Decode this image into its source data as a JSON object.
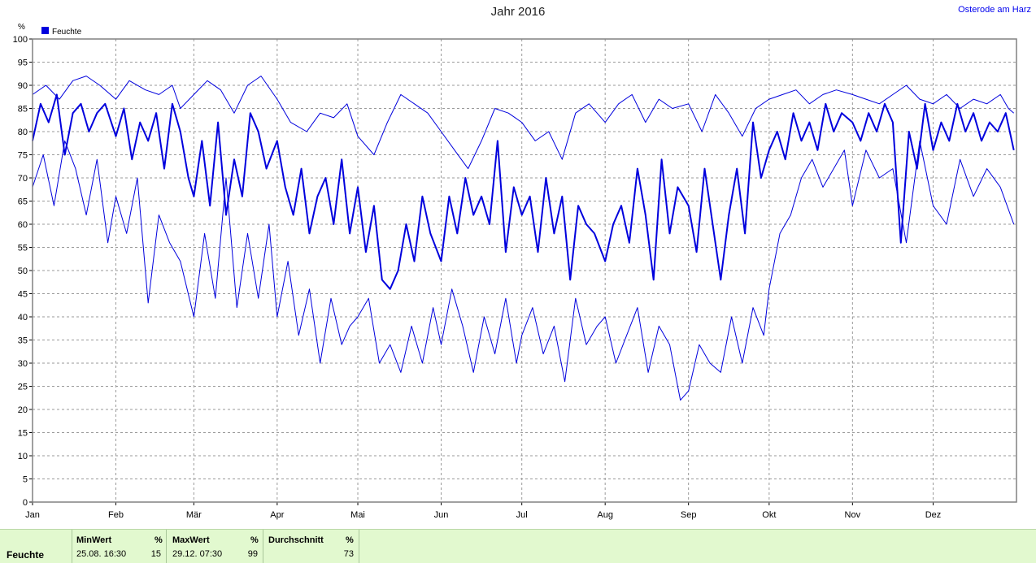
{
  "header": {
    "title": "Jahr 2016",
    "location": "Osterode am Harz"
  },
  "chart_data": {
    "type": "line",
    "title": "Jahr 2016",
    "yunit": "%",
    "ylim": [
      0,
      100
    ],
    "yticks": [
      0,
      5,
      10,
      15,
      20,
      25,
      30,
      35,
      40,
      45,
      50,
      55,
      60,
      65,
      70,
      75,
      80,
      85,
      90,
      95,
      100
    ],
    "xlim": [
      0,
      366
    ],
    "x_label_months": [
      "Jan",
      "Feb",
      "Mär",
      "Apr",
      "Mai",
      "Jun",
      "Jul",
      "Aug",
      "Sep",
      "Okt",
      "Nov",
      "Dez"
    ],
    "month_starts": [
      0,
      31,
      60,
      91,
      121,
      152,
      182,
      213,
      244,
      274,
      305,
      335
    ],
    "grid": true,
    "legend": {
      "label": "Feuchte",
      "position": "top-left",
      "color": "#0000dd"
    },
    "series": [
      {
        "name": "Feuchte",
        "role": "max",
        "color": "#0000dd",
        "x": [
          0,
          5,
          10,
          15,
          20,
          25,
          31,
          36,
          42,
          47,
          52,
          55,
          60,
          65,
          70,
          75,
          80,
          85,
          91,
          96,
          102,
          107,
          112,
          117,
          121,
          127,
          132,
          137,
          142,
          147,
          152,
          157,
          162,
          167,
          172,
          177,
          182,
          187,
          192,
          197,
          202,
          207,
          213,
          218,
          223,
          228,
          233,
          238,
          244,
          249,
          254,
          259,
          264,
          269,
          274,
          279,
          284,
          289,
          294,
          299,
          305,
          310,
          315,
          320,
          325,
          330,
          335,
          340,
          345,
          350,
          355,
          360,
          363,
          365
        ],
        "values": [
          88,
          90,
          87,
          91,
          92,
          90,
          87,
          91,
          89,
          88,
          90,
          85,
          88,
          91,
          89,
          84,
          90,
          92,
          87,
          82,
          80,
          84,
          83,
          86,
          79,
          75,
          82,
          88,
          86,
          84,
          80,
          76,
          72,
          78,
          85,
          84,
          82,
          78,
          80,
          74,
          84,
          86,
          82,
          86,
          88,
          82,
          87,
          85,
          86,
          80,
          88,
          84,
          79,
          85,
          87,
          88,
          89,
          86,
          88,
          89,
          88,
          87,
          86,
          88,
          90,
          87,
          86,
          88,
          85,
          87,
          86,
          88,
          85,
          84
        ]
      },
      {
        "name": "Feuchte",
        "role": "mean",
        "color": "#0000dd",
        "x": [
          0,
          3,
          6,
          9,
          12,
          15,
          18,
          21,
          24,
          27,
          31,
          34,
          37,
          40,
          43,
          46,
          49,
          52,
          55,
          58,
          60,
          63,
          66,
          69,
          72,
          75,
          78,
          81,
          84,
          87,
          91,
          94,
          97,
          100,
          103,
          106,
          109,
          112,
          115,
          118,
          121,
          124,
          127,
          130,
          133,
          136,
          139,
          142,
          145,
          148,
          152,
          155,
          158,
          161,
          164,
          167,
          170,
          173,
          176,
          179,
          182,
          185,
          188,
          191,
          194,
          197,
          200,
          203,
          206,
          209,
          213,
          216,
          219,
          222,
          225,
          228,
          231,
          234,
          237,
          240,
          244,
          247,
          250,
          253,
          256,
          259,
          262,
          265,
          268,
          271,
          274,
          277,
          280,
          283,
          286,
          289,
          292,
          295,
          298,
          301,
          305,
          308,
          311,
          314,
          317,
          320,
          323,
          326,
          329,
          332,
          335,
          338,
          341,
          344,
          347,
          350,
          353,
          356,
          359,
          362,
          365
        ],
        "values": [
          78,
          86,
          82,
          88,
          75,
          84,
          86,
          80,
          84,
          86,
          79,
          85,
          74,
          82,
          78,
          84,
          72,
          86,
          80,
          70,
          66,
          78,
          64,
          82,
          62,
          74,
          66,
          84,
          80,
          72,
          78,
          68,
          62,
          72,
          58,
          66,
          70,
          60,
          74,
          58,
          68,
          54,
          64,
          48,
          46,
          50,
          60,
          52,
          66,
          58,
          52,
          66,
          58,
          70,
          62,
          66,
          60,
          78,
          54,
          68,
          62,
          66,
          54,
          70,
          58,
          66,
          48,
          64,
          60,
          58,
          52,
          60,
          64,
          56,
          72,
          62,
          48,
          74,
          58,
          68,
          64,
          54,
          72,
          60,
          48,
          62,
          72,
          58,
          82,
          70,
          76,
          80,
          74,
          84,
          78,
          82,
          76,
          86,
          80,
          84,
          82,
          78,
          84,
          80,
          86,
          82,
          56,
          80,
          72,
          86,
          76,
          82,
          78,
          86,
          80,
          84,
          78,
          82,
          80,
          84,
          76
        ]
      },
      {
        "name": "Feuchte",
        "role": "min",
        "color": "#0000dd",
        "x": [
          0,
          4,
          8,
          12,
          16,
          20,
          24,
          28,
          31,
          35,
          39,
          43,
          47,
          51,
          55,
          60,
          64,
          68,
          72,
          76,
          80,
          84,
          88,
          91,
          95,
          99,
          103,
          107,
          111,
          115,
          118,
          121,
          125,
          129,
          133,
          137,
          141,
          145,
          149,
          152,
          156,
          160,
          164,
          168,
          172,
          176,
          180,
          182,
          186,
          190,
          194,
          198,
          202,
          206,
          210,
          213,
          217,
          221,
          225,
          229,
          233,
          237,
          241,
          244,
          248,
          252,
          256,
          260,
          264,
          268,
          272,
          274,
          278,
          282,
          286,
          290,
          294,
          298,
          302,
          305,
          310,
          315,
          320,
          325,
          330,
          335,
          340,
          345,
          350,
          355,
          360,
          365
        ],
        "values": [
          68,
          75,
          64,
          78,
          72,
          62,
          74,
          56,
          66,
          58,
          70,
          43,
          62,
          56,
          52,
          40,
          58,
          44,
          70,
          42,
          58,
          44,
          60,
          40,
          52,
          36,
          46,
          30,
          44,
          34,
          38,
          40,
          44,
          30,
          34,
          28,
          38,
          30,
          42,
          34,
          46,
          38,
          28,
          40,
          32,
          44,
          30,
          36,
          42,
          32,
          38,
          26,
          44,
          34,
          38,
          40,
          30,
          36,
          42,
          28,
          38,
          34,
          22,
          24,
          34,
          30,
          28,
          40,
          30,
          42,
          36,
          46,
          58,
          62,
          70,
          74,
          68,
          72,
          76,
          64,
          76,
          70,
          72,
          56,
          78,
          64,
          60,
          74,
          66,
          72,
          68,
          60
        ]
      }
    ],
    "stats": {
      "row_label": "Feuchte",
      "min": {
        "header": "MinWert",
        "unit": "%",
        "time": "25.08.  16:30",
        "value": "15"
      },
      "max": {
        "header": "MaxWert",
        "unit": "%",
        "time": "29.12.  07:30",
        "value": "99"
      },
      "mean": {
        "header": "Durchschnitt",
        "unit": "%",
        "value": "73"
      }
    }
  }
}
